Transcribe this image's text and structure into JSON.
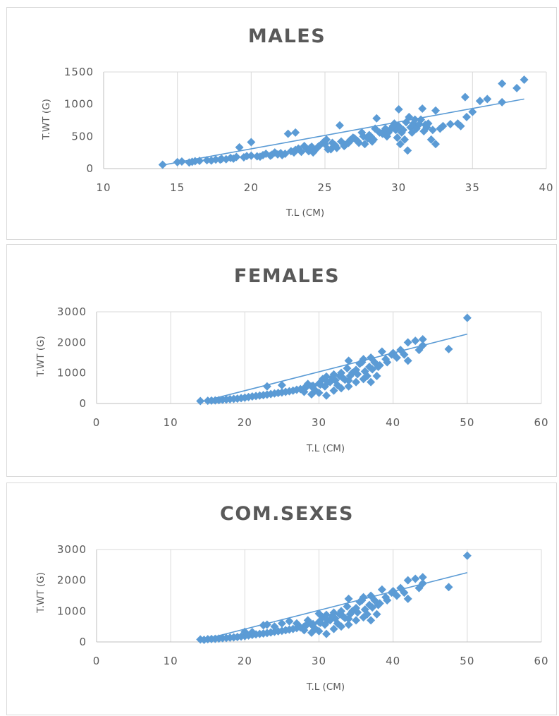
{
  "chart_data": [
    {
      "type": "scatter",
      "title": "MALES",
      "xlabel": "T.L (CM)",
      "ylabel": "T.WT (G)",
      "xlim": [
        10,
        40
      ],
      "ylim": [
        0,
        1500
      ],
      "xticks": [
        "10",
        "15",
        "20",
        "25",
        "30",
        "35",
        "40"
      ],
      "yticks": [
        "0",
        "500",
        "1000",
        "1500"
      ],
      "grid": "vertical",
      "trendline": [
        [
          14,
          55
        ],
        [
          38.5,
          1080
        ]
      ],
      "points": [
        [
          14,
          60
        ],
        [
          15,
          100
        ],
        [
          15.3,
          110
        ],
        [
          15.8,
          95
        ],
        [
          16.2,
          115
        ],
        [
          16.5,
          120
        ],
        [
          17,
          130
        ],
        [
          17.3,
          125
        ],
        [
          17.6,
          140
        ],
        [
          18,
          150
        ],
        [
          18.3,
          145
        ],
        [
          18.6,
          165
        ],
        [
          19,
          180
        ],
        [
          19.2,
          330
        ],
        [
          19.5,
          175
        ],
        [
          20,
          410
        ],
        [
          20,
          200
        ],
        [
          20.4,
          190
        ],
        [
          20.8,
          210
        ],
        [
          21,
          230
        ],
        [
          21.3,
          200
        ],
        [
          21.6,
          250
        ],
        [
          22,
          240
        ],
        [
          22.3,
          230
        ],
        [
          22.5,
          540
        ],
        [
          22.7,
          270
        ],
        [
          23,
          560
        ],
        [
          23,
          290
        ],
        [
          23.4,
          260
        ],
        [
          23.8,
          300
        ],
        [
          24,
          320
        ],
        [
          24.3,
          280
        ],
        [
          24.6,
          350
        ],
        [
          25,
          380
        ],
        [
          25.2,
          300
        ],
        [
          25.5,
          400
        ],
        [
          25.8,
          320
        ],
        [
          26,
          670
        ],
        [
          26.1,
          420
        ],
        [
          26.4,
          370
        ],
        [
          26.8,
          450
        ],
        [
          27,
          470
        ],
        [
          27.3,
          400
        ],
        [
          27.6,
          500
        ],
        [
          28,
          520
        ],
        [
          28.3,
          450
        ],
        [
          28.5,
          780
        ],
        [
          28.7,
          560
        ],
        [
          29,
          580
        ],
        [
          29.2,
          500
        ],
        [
          29.5,
          620
        ],
        [
          29.8,
          600
        ],
        [
          30,
          920
        ],
        [
          30,
          660
        ],
        [
          30.2,
          560
        ],
        [
          30.5,
          720
        ],
        [
          30.6,
          280
        ],
        [
          30.8,
          640
        ],
        [
          31,
          700
        ],
        [
          31.2,
          620
        ],
        [
          31.5,
          760
        ],
        [
          31.6,
          930
        ],
        [
          31.8,
          680
        ],
        [
          32,
          700
        ],
        [
          32.2,
          450
        ],
        [
          32.5,
          900
        ],
        [
          32.5,
          380
        ],
        [
          33,
          660
        ],
        [
          34,
          700
        ],
        [
          34.2,
          660
        ],
        [
          34.5,
          1110
        ],
        [
          34.6,
          800
        ],
        [
          35,
          880
        ],
        [
          35.5,
          1050
        ],
        [
          36,
          1080
        ],
        [
          37,
          1030
        ],
        [
          37,
          1320
        ],
        [
          38,
          1250
        ],
        [
          38.5,
          1380
        ],
        [
          16,
          105
        ],
        [
          18.8,
          155
        ],
        [
          21.8,
          220
        ],
        [
          24.5,
          330
        ],
        [
          27.2,
          430
        ],
        [
          29.3,
          560
        ],
        [
          31.4,
          690
        ],
        [
          32.8,
          620
        ],
        [
          33.5,
          690
        ],
        [
          30.3,
          600
        ],
        [
          28.9,
          540
        ],
        [
          26.6,
          400
        ],
        [
          25.7,
          360
        ],
        [
          23.2,
          310
        ],
        [
          22.1,
          210
        ],
        [
          20.6,
          185
        ],
        [
          19.7,
          195
        ],
        [
          17.9,
          140
        ],
        [
          24.9,
          410
        ],
        [
          27.9,
          470
        ],
        [
          29.7,
          700
        ],
        [
          31.9,
          640
        ],
        [
          30.9,
          560
        ],
        [
          28.1,
          500
        ],
        [
          26.9,
          480
        ],
        [
          24.1,
          340
        ],
        [
          22.9,
          250
        ],
        [
          21.4,
          215
        ],
        [
          26.3,
          350
        ],
        [
          29.1,
          620
        ],
        [
          31.1,
          760
        ],
        [
          27.5,
          560
        ],
        [
          25.1,
          450
        ],
        [
          23.6,
          350
        ],
        [
          32.3,
          600
        ],
        [
          30.7,
          800
        ],
        [
          28.4,
          620
        ],
        [
          31.7,
          580
        ],
        [
          29.9,
          480
        ],
        [
          27.7,
          380
        ],
        [
          30.1,
          380
        ],
        [
          30.4,
          450
        ],
        [
          25.4,
          300
        ],
        [
          24.2,
          250
        ],
        [
          28.2,
          420
        ],
        [
          26.7,
          440
        ],
        [
          23.9,
          270
        ],
        [
          29.6,
          660
        ]
      ]
    },
    {
      "type": "scatter",
      "title": "FEMALES",
      "xlabel": "T.L (CM)",
      "ylabel": "T.WT (G)",
      "xlim": [
        0,
        60
      ],
      "ylim": [
        0,
        3000
      ],
      "xticks": [
        "0",
        "10",
        "20",
        "30",
        "40",
        "50",
        "60"
      ],
      "yticks": [
        "0",
        "1000",
        "2000",
        "3000"
      ],
      "grid": "vertical",
      "trendline": [
        [
          14,
          50
        ],
        [
          50,
          2270
        ]
      ],
      "points": [
        [
          14,
          80
        ],
        [
          15,
          90
        ],
        [
          16,
          100
        ],
        [
          17,
          120
        ],
        [
          18,
          140
        ],
        [
          19,
          160
        ],
        [
          20,
          190
        ],
        [
          21,
          230
        ],
        [
          22,
          260
        ],
        [
          23,
          560
        ],
        [
          23,
          290
        ],
        [
          24,
          330
        ],
        [
          25,
          600
        ],
        [
          25,
          360
        ],
        [
          26,
          400
        ],
        [
          27,
          450
        ],
        [
          28,
          500
        ],
        [
          28.5,
          640
        ],
        [
          29,
          560
        ],
        [
          29.5,
          430
        ],
        [
          30,
          650
        ],
        [
          30.5,
          800
        ],
        [
          31,
          880
        ],
        [
          31,
          260
        ],
        [
          31.5,
          700
        ],
        [
          32,
          950
        ],
        [
          32.5,
          600
        ],
        [
          33,
          1000
        ],
        [
          33.5,
          780
        ],
        [
          34,
          1400
        ],
        [
          34,
          560
        ],
        [
          34.5,
          1000
        ],
        [
          35,
          1100
        ],
        [
          35.5,
          1300
        ],
        [
          36,
          1450
        ],
        [
          36.5,
          900
        ],
        [
          37,
          1500
        ],
        [
          37,
          700
        ],
        [
          37.5,
          1350
        ],
        [
          38,
          1200
        ],
        [
          38.5,
          1700
        ],
        [
          39,
          1450
        ],
        [
          40,
          1650
        ],
        [
          40.5,
          1500
        ],
        [
          41,
          1750
        ],
        [
          42,
          2000
        ],
        [
          42,
          1400
        ],
        [
          43,
          2050
        ],
        [
          43.5,
          1750
        ],
        [
          44,
          2100
        ],
        [
          44,
          1900
        ],
        [
          47.5,
          1780
        ],
        [
          50,
          2800
        ],
        [
          15.5,
          95
        ],
        [
          16.5,
          110
        ],
        [
          17.5,
          130
        ],
        [
          18.5,
          150
        ],
        [
          19.5,
          175
        ],
        [
          20.5,
          210
        ],
        [
          21.5,
          245
        ],
        [
          22.5,
          275
        ],
        [
          23.5,
          310
        ],
        [
          24.5,
          345
        ],
        [
          25.5,
          380
        ],
        [
          26.5,
          420
        ],
        [
          27.5,
          470
        ],
        [
          28.2,
          520
        ],
        [
          29.2,
          580
        ],
        [
          30.2,
          620
        ],
        [
          31.2,
          700
        ],
        [
          32.2,
          760
        ],
        [
          33.2,
          840
        ],
        [
          34.2,
          900
        ],
        [
          35.2,
          960
        ],
        [
          36.2,
          1050
        ],
        [
          37.2,
          1120
        ],
        [
          38.2,
          1250
        ],
        [
          39.2,
          1350
        ],
        [
          36,
          800
        ],
        [
          35,
          700
        ],
        [
          34,
          750
        ],
        [
          33,
          500
        ],
        [
          32,
          420
        ],
        [
          37.8,
          900
        ],
        [
          30,
          350
        ],
        [
          29,
          300
        ],
        [
          28,
          380
        ],
        [
          36.8,
          1200
        ],
        [
          35.8,
          1350
        ],
        [
          33.8,
          1150
        ],
        [
          32.8,
          900
        ],
        [
          31.8,
          850
        ],
        [
          30.8,
          560
        ],
        [
          39.8,
          1600
        ],
        [
          41.5,
          1600
        ]
      ]
    },
    {
      "type": "scatter",
      "title": "COM.SEXES",
      "xlabel": "T.L (CM)",
      "ylabel": "T.WT (G)",
      "xlim": [
        0,
        60
      ],
      "ylim": [
        0,
        3000
      ],
      "xticks": [
        "0",
        "10",
        "20",
        "30",
        "40",
        "50",
        "60"
      ],
      "yticks": [
        "0",
        "1000",
        "2000",
        "3000"
      ],
      "grid": "vertical",
      "trendline": [
        [
          14,
          50
        ],
        [
          50,
          2250
        ]
      ],
      "points": [
        [
          14,
          80
        ],
        [
          14.5,
          70
        ],
        [
          15,
          90
        ],
        [
          16,
          100
        ],
        [
          17,
          120
        ],
        [
          18,
          140
        ],
        [
          19,
          160
        ],
        [
          20,
          330
        ],
        [
          20,
          190
        ],
        [
          21,
          230
        ],
        [
          22,
          260
        ],
        [
          22.5,
          540
        ],
        [
          23,
          560
        ],
        [
          23,
          290
        ],
        [
          24,
          330
        ],
        [
          25,
          600
        ],
        [
          25,
          360
        ],
        [
          26,
          670
        ],
        [
          26,
          400
        ],
        [
          27,
          450
        ],
        [
          28,
          500
        ],
        [
          28.5,
          700
        ],
        [
          29,
          560
        ],
        [
          29.5,
          430
        ],
        [
          30,
          920
        ],
        [
          30,
          650
        ],
        [
          30.5,
          800
        ],
        [
          31,
          880
        ],
        [
          31,
          260
        ],
        [
          31.5,
          700
        ],
        [
          32,
          950
        ],
        [
          32.5,
          600
        ],
        [
          33,
          1000
        ],
        [
          33.5,
          780
        ],
        [
          34,
          1400
        ],
        [
          34,
          560
        ],
        [
          34.5,
          1000
        ],
        [
          35,
          1100
        ],
        [
          35.5,
          1300
        ],
        [
          36,
          1450
        ],
        [
          36.5,
          900
        ],
        [
          37,
          1500
        ],
        [
          37,
          700
        ],
        [
          37.5,
          1350
        ],
        [
          38,
          1200
        ],
        [
          38.5,
          1700
        ],
        [
          39,
          1450
        ],
        [
          40,
          1650
        ],
        [
          40.5,
          1500
        ],
        [
          41,
          1750
        ],
        [
          42,
          2000
        ],
        [
          42,
          1400
        ],
        [
          43,
          2050
        ],
        [
          43.5,
          1750
        ],
        [
          44,
          2100
        ],
        [
          44,
          1900
        ],
        [
          47.5,
          1780
        ],
        [
          50,
          2800
        ],
        [
          15.5,
          95
        ],
        [
          16.5,
          110
        ],
        [
          17.5,
          130
        ],
        [
          18.5,
          150
        ],
        [
          19.5,
          175
        ],
        [
          20.5,
          210
        ],
        [
          21.5,
          245
        ],
        [
          22.5,
          275
        ],
        [
          23.5,
          310
        ],
        [
          24.5,
          345
        ],
        [
          25.5,
          380
        ],
        [
          26.5,
          420
        ],
        [
          27.5,
          470
        ],
        [
          28.2,
          520
        ],
        [
          29.2,
          580
        ],
        [
          30.2,
          620
        ],
        [
          31.2,
          700
        ],
        [
          32.2,
          760
        ],
        [
          33.2,
          840
        ],
        [
          34.2,
          900
        ],
        [
          35.2,
          960
        ],
        [
          36.2,
          1050
        ],
        [
          37.2,
          1120
        ],
        [
          38.2,
          1250
        ],
        [
          39.2,
          1350
        ],
        [
          36,
          800
        ],
        [
          35,
          700
        ],
        [
          34,
          750
        ],
        [
          33,
          500
        ],
        [
          32,
          420
        ],
        [
          37.8,
          900
        ],
        [
          30,
          350
        ],
        [
          29,
          300
        ],
        [
          28,
          380
        ],
        [
          36.8,
          1200
        ],
        [
          35.8,
          1350
        ],
        [
          33.8,
          1150
        ],
        [
          32.8,
          900
        ],
        [
          31.8,
          850
        ],
        [
          30.8,
          560
        ],
        [
          39.8,
          1600
        ],
        [
          41.5,
          1600
        ],
        [
          24,
          500
        ],
        [
          27,
          600
        ],
        [
          21,
          320
        ]
      ]
    }
  ]
}
